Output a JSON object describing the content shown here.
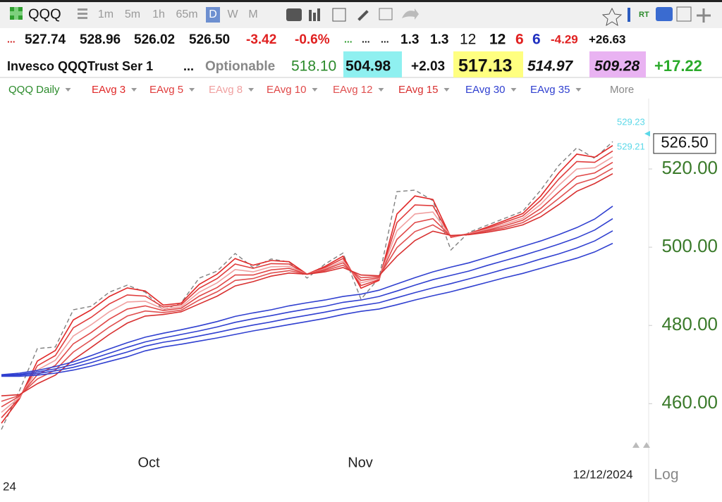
{
  "toolbar": {
    "symbol": "QQQ",
    "intervals": [
      "1m",
      "5m",
      "1h",
      "65m",
      "D",
      "W",
      "M"
    ]
  },
  "quote": {
    "row1": [
      "...",
      "527.74",
      "528.96",
      "526.02",
      "526.50",
      "-3.42",
      "-0.6%",
      "...",
      "...",
      "...",
      "1.3",
      "1.3",
      "12",
      "12",
      "6",
      "6",
      "-4.29",
      "+26.63"
    ],
    "row2": [
      "Invesco QQQTrust Ser 1",
      "...",
      "Optionable",
      "518.10",
      "504.98",
      "+2.03",
      "517.13",
      "514.97",
      "509.28",
      "+17.22"
    ]
  },
  "chart_data": {
    "type": "line",
    "title": "QQQ Daily",
    "more": "More",
    "categories": [
      null,
      null,
      null,
      null,
      null,
      null,
      null,
      null,
      "Oct",
      null,
      null,
      null,
      null,
      null,
      null,
      null,
      null,
      null,
      null,
      null,
      "Nov",
      null,
      null,
      null,
      null,
      null,
      null,
      null,
      null,
      null,
      null,
      null,
      null,
      null,
      null
    ],
    "series": [
      {
        "name": "QQQ Daily",
        "color": "#808080",
        "dashed": true,
        "values": [
          453.4,
          463.3,
          474.1,
          474.5,
          484.0,
          484.9,
          488.5,
          490.3,
          488.5,
          484.0,
          485.8,
          492.1,
          493.9,
          498.4,
          494.8,
          497.0,
          496.2,
          492.1,
          495.7,
          498.5,
          486.7,
          492.1,
          514.2,
          514.6,
          511.9,
          499.3,
          503.8,
          505.6,
          507.4,
          509.2,
          514.6,
          520.9,
          525.4,
          522.7,
          527.0
        ]
      },
      {
        "name": "EAvg 3",
        "color": "#e02828",
        "values": [
          455.0,
          461.2,
          470.9,
          473.6,
          481.4,
          484.0,
          487.4,
          489.6,
          488.8,
          485.2,
          485.7,
          490.5,
          493.1,
          497.1,
          495.4,
          496.6,
          496.3,
          493.1,
          495.1,
          497.7,
          489.5,
          491.5,
          508.5,
          513.1,
          512.2,
          502.5,
          503.5,
          505.1,
          506.8,
          508.6,
          513.1,
          519.0,
          523.8,
          523.0,
          526.0
        ]
      },
      {
        "name": "EAvg 5",
        "color": "#e03c3c",
        "values": [
          456.4,
          461.4,
          469.7,
          472.3,
          479.4,
          482.1,
          485.5,
          487.8,
          487.5,
          484.7,
          485.3,
          489.5,
          492.0,
          495.7,
          494.6,
          495.8,
          495.7,
          493.1,
          494.8,
          497.1,
          490.2,
          491.7,
          506.3,
          510.8,
          510.6,
          502.6,
          503.4,
          504.8,
          506.4,
          508.0,
          512.0,
          517.4,
          521.9,
          521.7,
          524.6
        ]
      },
      {
        "name": "EAvg 8",
        "color": "#f0a0a0",
        "values": [
          457.8,
          461.6,
          468.6,
          471.1,
          477.3,
          480.2,
          483.5,
          486.0,
          486.2,
          484.2,
          484.8,
          488.5,
          490.9,
          494.3,
          493.7,
          495.0,
          495.1,
          493.1,
          494.5,
          496.5,
          490.9,
          492.0,
          504.2,
          508.5,
          509.0,
          502.7,
          503.4,
          504.6,
          505.9,
          507.4,
          511.0,
          515.8,
          520.0,
          520.3,
          523.1
        ]
      },
      {
        "name": "EAvg 10",
        "color": "#e04848",
        "values": [
          459.2,
          461.9,
          467.4,
          469.8,
          475.3,
          478.2,
          481.6,
          484.2,
          485.0,
          483.8,
          484.4,
          487.5,
          489.7,
          492.9,
          492.9,
          494.2,
          494.6,
          493.1,
          494.3,
          496.0,
          491.5,
          492.2,
          502.0,
          506.3,
          507.3,
          502.8,
          503.3,
          504.3,
          505.5,
          506.9,
          509.9,
          514.1,
          518.1,
          519.0,
          521.7
        ]
      },
      {
        "name": "EAvg 12",
        "color": "#e05050",
        "values": [
          460.6,
          462.1,
          466.3,
          468.6,
          473.2,
          476.3,
          479.6,
          482.4,
          483.7,
          483.3,
          483.9,
          486.5,
          488.6,
          491.5,
          492.0,
          493.4,
          494.0,
          493.1,
          494.0,
          495.4,
          492.2,
          492.5,
          499.9,
          504.0,
          505.7,
          502.9,
          503.3,
          504.1,
          505.0,
          506.3,
          508.9,
          512.5,
          516.2,
          517.6,
          520.2
        ]
      },
      {
        "name": "EAvg 15",
        "color": "#d83030",
        "values": [
          462.0,
          462.3,
          465.1,
          467.3,
          471.2,
          474.4,
          477.7,
          480.6,
          482.4,
          482.8,
          483.5,
          485.5,
          487.5,
          490.1,
          491.2,
          492.6,
          493.4,
          493.1,
          493.7,
          494.8,
          492.9,
          492.7,
          497.7,
          501.7,
          504.1,
          503.0,
          503.2,
          503.8,
          504.6,
          505.7,
          507.8,
          510.9,
          514.3,
          516.3,
          518.8
        ]
      },
      {
        "name": "EAvg 30",
        "color": "#3040d0",
        "values": [
          467.4,
          467.8,
          468.5,
          469.5,
          470.7,
          472.3,
          474.0,
          475.6,
          477.0,
          478.0,
          478.9,
          479.9,
          481.0,
          482.3,
          483.2,
          484.0,
          485.0,
          485.8,
          486.5,
          487.4,
          488.0,
          489.0,
          490.6,
          492.2,
          493.7,
          494.9,
          496.0,
          497.4,
          498.8,
          500.2,
          501.6,
          503.2,
          505.0,
          507.2,
          510.5
        ]
      },
      {
        "name": "EAvg 35",
        "color": "#3040d0",
        "values": [
          467.3,
          467.5,
          468.1,
          468.9,
          470.0,
          471.4,
          472.9,
          474.4,
          475.8,
          476.8,
          477.7,
          478.6,
          479.6,
          480.8,
          481.7,
          482.5,
          483.4,
          484.2,
          484.9,
          485.9,
          486.5,
          487.4,
          488.8,
          490.3,
          491.7,
          492.8,
          493.9,
          495.3,
          496.6,
          497.9,
          499.3,
          500.8,
          502.4,
          504.4,
          507.3
        ]
      },
      {
        "color": "#3040d0",
        "values": [
          467.1,
          467.3,
          467.7,
          468.4,
          469.3,
          470.5,
          471.9,
          473.2,
          474.7,
          475.7,
          476.4,
          477.3,
          478.2,
          479.2,
          480.1,
          480.9,
          481.8,
          482.6,
          483.4,
          484.3,
          485.1,
          485.8,
          487.1,
          488.4,
          489.6,
          490.7,
          491.9,
          493.1,
          494.4,
          495.6,
          497.0,
          498.3,
          499.8,
          501.6,
          504.2
        ]
      },
      {
        "color": "#3040d0",
        "values": [
          467.0,
          467.0,
          467.3,
          467.8,
          468.6,
          469.6,
          470.8,
          472.0,
          473.5,
          474.5,
          475.2,
          476.0,
          476.8,
          477.7,
          478.6,
          479.4,
          480.2,
          481.0,
          481.8,
          482.8,
          483.6,
          484.2,
          485.3,
          486.5,
          487.6,
          488.6,
          489.8,
          491.0,
          492.2,
          493.3,
          494.6,
          495.9,
          497.2,
          498.8,
          501.0
        ]
      }
    ],
    "ylim": [
      448,
      538
    ],
    "yticks": [
      {
        "value": 460,
        "label": "460.00"
      },
      {
        "value": 480,
        "label": "480.00"
      },
      {
        "value": 500,
        "label": "500.00"
      },
      {
        "value": 520,
        "label": "520.00"
      }
    ],
    "last_price": {
      "value": 526.5,
      "label": "526.50"
    },
    "high_labels": [
      529.23,
      529.21
    ],
    "date_label": "12/12/2024",
    "scale_label": "Log",
    "start_label": "24"
  }
}
